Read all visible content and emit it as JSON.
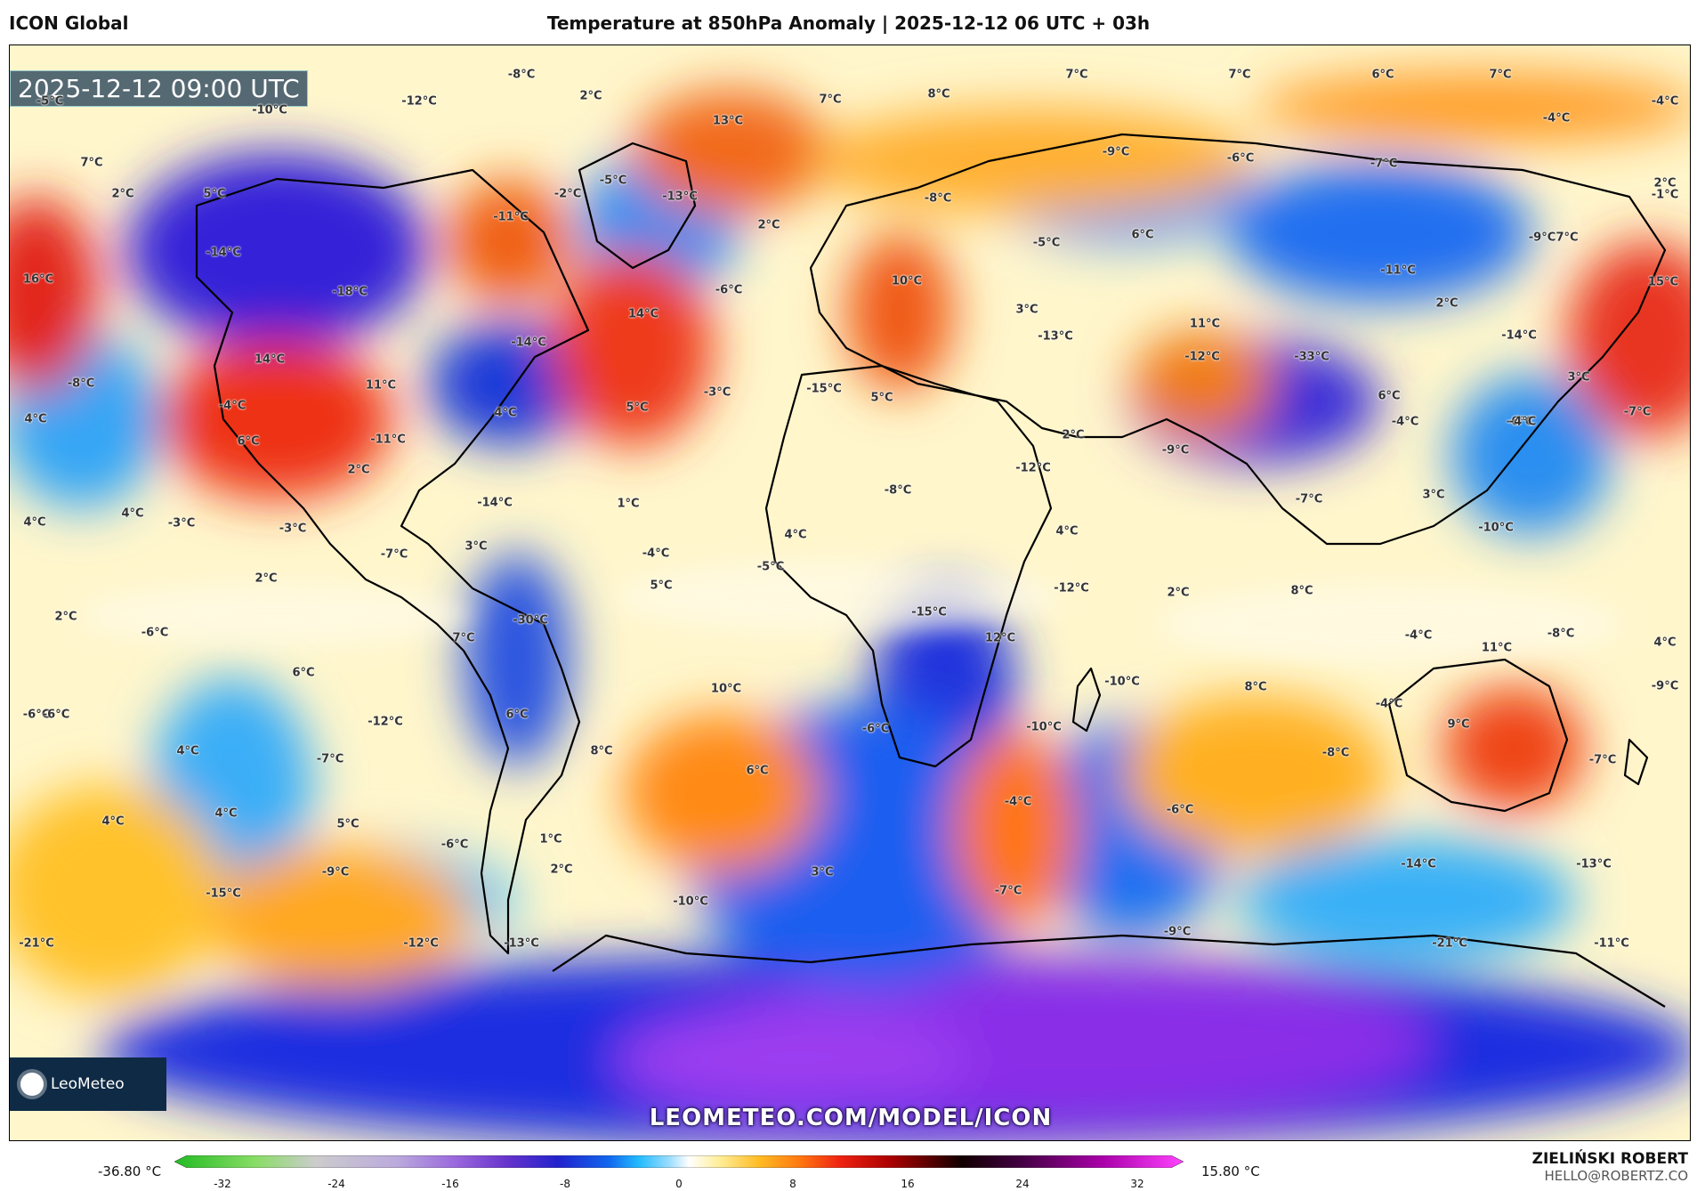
{
  "header": {
    "model": "ICON Global",
    "title": "Temperature at 850hPa Anomaly | 2025-12-12 06 UTC + 03h"
  },
  "map": {
    "valid_time": "2025-12-12 09:00 UTC",
    "url": "LEOMETEO.COM/MODEL/ICON",
    "logo": "LeoMeteo",
    "labels": [
      "-5°C",
      "-10°C",
      "-12°C",
      "-8°C",
      "2°C",
      "13°C",
      "7°C",
      "8°C",
      "7°C",
      "7°C",
      "6°C",
      "7°C",
      "-4°C",
      "-4°C",
      "7°C",
      "2°C",
      "5°C",
      "-2°C",
      "-5°C",
      "-13°C",
      "-11°C",
      "2°C",
      "-8°C",
      "-9°C",
      "-6°C",
      "-7°C",
      "2°C",
      "-1°C",
      "16°C",
      "-14°C",
      "-18°C",
      "-6°C",
      "14°C",
      "10°C",
      "-5°C",
      "6°C",
      "-11°C",
      "-9°C",
      "7°C",
      "15°C",
      "14°C",
      "11°C",
      "-14°C",
      "-3°C",
      "-13°C",
      "3°C",
      "11°C",
      "2°C",
      "-12°C",
      "-33°C",
      "-14°C",
      "-8°C",
      "-4°C",
      "-4°C",
      "6°C",
      "5°C",
      "-15°C",
      "5°C",
      "4°C",
      "-6°C",
      "3°C",
      "-4°C",
      "-7°C",
      "4°C",
      "6°C",
      "-11°C",
      "-12°C",
      "2°C",
      "-9°C",
      "3°C",
      "-7°C",
      "2°C",
      "4°C",
      "4°C",
      "-3°C",
      "-3°C",
      "1°C",
      "-14°C",
      "4°C",
      "-8°C",
      "4°C",
      "-10°C",
      "-7°C",
      "3°C",
      "-5°C",
      "-4°C",
      "2°C",
      "5°C",
      "-12°C",
      "2°C",
      "8°C",
      "2°C",
      "-6°C",
      "7°C",
      "-30°C",
      "-15°C",
      "12°C",
      "-4°C",
      "11°C",
      "-8°C",
      "4°C",
      "6°C",
      "10°C",
      "-10°C",
      "8°C",
      "-9°C",
      "-6°C",
      "-6°C",
      "6°C",
      "-12°C",
      "-6°C",
      "-10°C",
      "9°C",
      "-4°C",
      "4°C",
      "-7°C",
      "8°C",
      "6°C",
      "-8°C",
      "-7°C",
      "4°C",
      "4°C",
      "5°C",
      "-4°C",
      "-6°C",
      "-6°C",
      "1°C",
      "-9°C",
      "2°C",
      "3°C",
      "-14°C",
      "-13°C",
      "-15°C",
      "-10°C",
      "-7°C",
      "-21°C",
      "-12°C",
      "-13°C",
      "-9°C",
      "-21°C",
      "-11°C",
      "-14°C"
    ]
  },
  "colorbar": {
    "min_label": "-36.80 °C",
    "max_label": "15.80 °C",
    "ticks": [
      "-32",
      "-24",
      "-16",
      "-8",
      "0",
      "8",
      "16",
      "24",
      "32"
    ],
    "colors": [
      "#22bb22",
      "#88dd66",
      "#cccccc",
      "#bbaadd",
      "#9966dd",
      "#6633cc",
      "#2222cc",
      "#1166ee",
      "#22bbff",
      "#99ddff",
      "#ffffff",
      "#ffee99",
      "#ffbb22",
      "#ff7711",
      "#ee2211",
      "#aa0000",
      "#550000",
      "#110000",
      "#440044",
      "#aa00aa",
      "#ff44ff"
    ]
  },
  "author": {
    "name": "ZIELIŃSKI ROBERT",
    "email": "HELLO@ROBERTZ.CO"
  }
}
